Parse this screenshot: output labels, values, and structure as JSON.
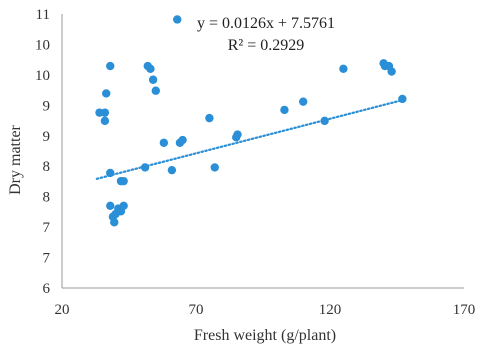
{
  "chart_data": {
    "type": "scatter",
    "title": "",
    "xlabel": "Fresh weight (g/plant)",
    "ylabel": "Dry matter",
    "xlim": [
      20,
      170
    ],
    "ylim": [
      6,
      11
    ],
    "x_ticks": [
      20,
      70,
      120,
      170
    ],
    "y_tick_labels": [
      "6",
      "7",
      "7",
      "8",
      "8",
      "9",
      "9",
      "10",
      "10",
      "11"
    ],
    "y_tick_values": [
      6,
      6.5,
      7,
      7.5,
      8,
      8.5,
      9,
      9.5,
      10,
      10.5
    ],
    "grid": false,
    "legend": "none",
    "marker_color": "#2a8fd6",
    "trendline": {
      "style": "dotted",
      "color": "#2a8fd6",
      "slope": 0.0126,
      "intercept": 7.5761,
      "x_range": [
        33,
        147
      ],
      "equation": "y = 0.0126x + 7.5761",
      "r_squared": "R² = 0.2929"
    },
    "points": [
      {
        "x": 34,
        "y": 9.2
      },
      {
        "x": 36,
        "y": 9.2
      },
      {
        "x": 36,
        "y": 9.05
      },
      {
        "x": 36.5,
        "y": 9.55
      },
      {
        "x": 38,
        "y": 8.1
      },
      {
        "x": 38,
        "y": 7.5
      },
      {
        "x": 38,
        "y": 10.05
      },
      {
        "x": 39,
        "y": 7.3
      },
      {
        "x": 39.5,
        "y": 7.2
      },
      {
        "x": 40,
        "y": 7.35
      },
      {
        "x": 41,
        "y": 7.45
      },
      {
        "x": 42,
        "y": 7.4
      },
      {
        "x": 42,
        "y": 7.95
      },
      {
        "x": 43,
        "y": 7.5
      },
      {
        "x": 43,
        "y": 7.95
      },
      {
        "x": 51,
        "y": 8.2
      },
      {
        "x": 52,
        "y": 10.05
      },
      {
        "x": 53,
        "y": 10.0
      },
      {
        "x": 54,
        "y": 9.8
      },
      {
        "x": 55,
        "y": 9.6
      },
      {
        "x": 58,
        "y": 8.65
      },
      {
        "x": 61,
        "y": 8.15
      },
      {
        "x": 63,
        "y": 10.9
      },
      {
        "x": 64,
        "y": 8.65
      },
      {
        "x": 65,
        "y": 8.7
      },
      {
        "x": 75,
        "y": 9.1
      },
      {
        "x": 77,
        "y": 8.2
      },
      {
        "x": 85,
        "y": 8.75
      },
      {
        "x": 85.5,
        "y": 8.8
      },
      {
        "x": 103,
        "y": 9.25
      },
      {
        "x": 110,
        "y": 9.4
      },
      {
        "x": 118,
        "y": 9.05
      },
      {
        "x": 125,
        "y": 10.0
      },
      {
        "x": 140,
        "y": 10.1
      },
      {
        "x": 140.5,
        "y": 10.05
      },
      {
        "x": 142,
        "y": 10.05
      },
      {
        "x": 143,
        "y": 9.95
      },
      {
        "x": 147,
        "y": 9.45
      }
    ]
  }
}
